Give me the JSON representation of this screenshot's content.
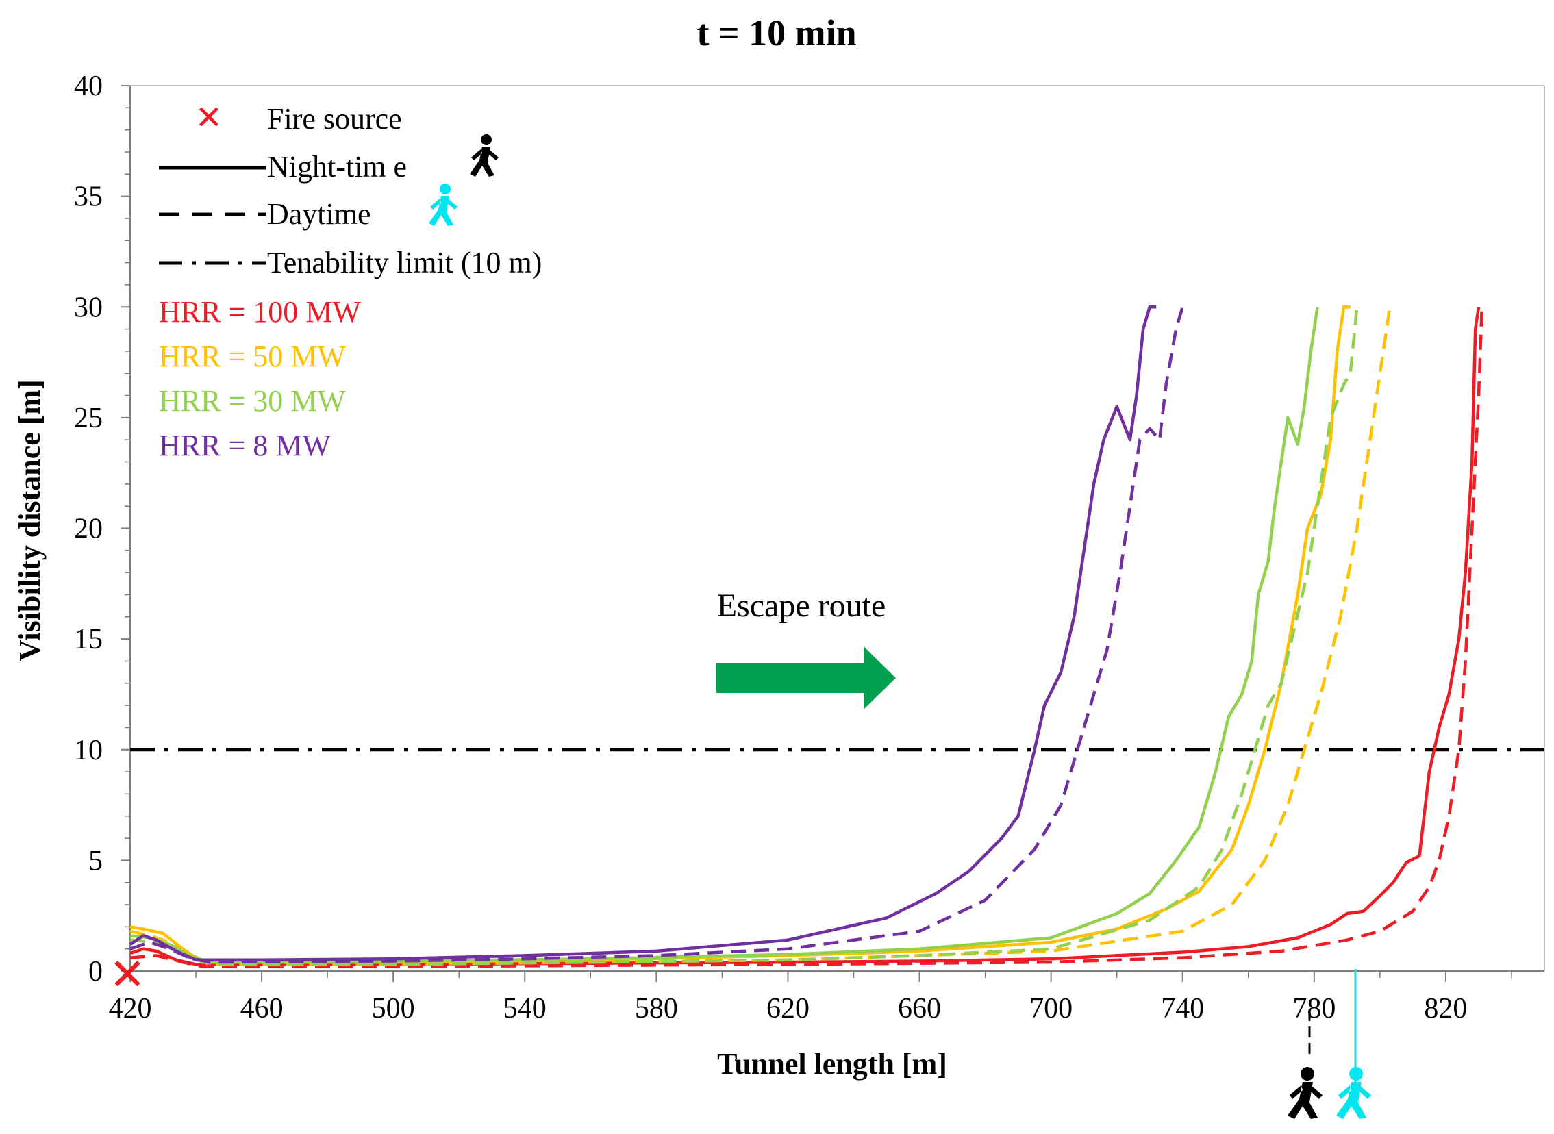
{
  "chart_data": {
    "type": "line",
    "title": "t = 10 min",
    "xlabel": "Tunnel length [m]",
    "ylabel": "Visibility distance [m]",
    "xlim": [
      420,
      850
    ],
    "ylim": [
      0,
      40
    ],
    "xticks": [
      420,
      460,
      500,
      540,
      580,
      620,
      660,
      700,
      740,
      780,
      820
    ],
    "yticks": [
      0,
      5,
      10,
      15,
      20,
      25,
      30,
      35,
      40
    ],
    "legend": {
      "fire_source": "Fire source",
      "night": "Night-tim e",
      "day": "Daytime",
      "limit": "Tenability limit (10 m)"
    },
    "hrr_labels": [
      {
        "text": "HRR  = 100  MW",
        "color": "#ee1c25"
      },
      {
        "text": "HRR  = 50  MW",
        "color": "#ffc000"
      },
      {
        "text": "HRR  = 30  MW",
        "color": "#92d050"
      },
      {
        "text": "HRR  = 8  MW",
        "color": "#7030a0"
      }
    ],
    "annotation": "Escape route",
    "tenability_limit": 10,
    "fire_source_x": 420,
    "series": [
      {
        "name": "HRR = 100 MW Night-time",
        "color": "#ee1c25",
        "style": "solid",
        "points": [
          [
            420,
            0.8
          ],
          [
            424,
            1.0
          ],
          [
            428,
            0.9
          ],
          [
            434,
            0.5
          ],
          [
            440,
            0.3
          ],
          [
            500,
            0.3
          ],
          [
            560,
            0.35
          ],
          [
            620,
            0.4
          ],
          [
            660,
            0.45
          ],
          [
            700,
            0.55
          ],
          [
            740,
            0.85
          ],
          [
            760,
            1.1
          ],
          [
            775,
            1.5
          ],
          [
            785,
            2.1
          ],
          [
            790,
            2.6
          ],
          [
            795,
            2.7
          ],
          [
            800,
            3.4
          ],
          [
            804,
            4.0
          ],
          [
            808,
            4.9
          ],
          [
            812,
            5.2
          ],
          [
            815,
            9.0
          ],
          [
            818,
            11.0
          ],
          [
            821,
            12.5
          ],
          [
            824,
            15.0
          ],
          [
            826,
            18.0
          ],
          [
            828,
            23.0
          ],
          [
            829,
            29.0
          ],
          [
            830,
            30.0
          ]
        ]
      },
      {
        "name": "HRR = 100 MW Daytime",
        "color": "#ee1c25",
        "style": "dashed",
        "points": [
          [
            420,
            0.6
          ],
          [
            428,
            0.7
          ],
          [
            436,
            0.4
          ],
          [
            442,
            0.2
          ],
          [
            500,
            0.2
          ],
          [
            560,
            0.25
          ],
          [
            620,
            0.3
          ],
          [
            660,
            0.35
          ],
          [
            700,
            0.4
          ],
          [
            740,
            0.6
          ],
          [
            770,
            0.9
          ],
          [
            790,
            1.4
          ],
          [
            800,
            1.8
          ],
          [
            810,
            2.7
          ],
          [
            815,
            3.8
          ],
          [
            818,
            5.0
          ],
          [
            821,
            7.0
          ],
          [
            824,
            10.0
          ],
          [
            826,
            14.0
          ],
          [
            828,
            20.0
          ],
          [
            830,
            26.0
          ],
          [
            831,
            30.0
          ]
        ]
      },
      {
        "name": "HRR = 50 MW Night-time",
        "color": "#ffc000",
        "style": "solid",
        "points": [
          [
            420,
            2.0
          ],
          [
            424,
            1.9
          ],
          [
            430,
            1.7
          ],
          [
            436,
            1.0
          ],
          [
            442,
            0.4
          ],
          [
            500,
            0.4
          ],
          [
            560,
            0.5
          ],
          [
            620,
            0.7
          ],
          [
            660,
            0.9
          ],
          [
            700,
            1.3
          ],
          [
            720,
            1.9
          ],
          [
            735,
            2.8
          ],
          [
            745,
            3.6
          ],
          [
            755,
            5.5
          ],
          [
            760,
            7.5
          ],
          [
            765,
            10.0
          ],
          [
            770,
            13.0
          ],
          [
            775,
            17.0
          ],
          [
            778,
            20.0
          ],
          [
            782,
            21.5
          ],
          [
            785,
            24.0
          ],
          [
            787,
            28.0
          ],
          [
            789,
            30.0
          ],
          [
            791,
            30.0
          ]
        ]
      },
      {
        "name": "HRR = 50 MW Daytime",
        "color": "#ffc000",
        "style": "dashed",
        "points": [
          [
            420,
            1.8
          ],
          [
            426,
            1.6
          ],
          [
            432,
            1.3
          ],
          [
            438,
            0.8
          ],
          [
            444,
            0.3
          ],
          [
            500,
            0.3
          ],
          [
            560,
            0.4
          ],
          [
            620,
            0.5
          ],
          [
            660,
            0.7
          ],
          [
            700,
            0.9
          ],
          [
            740,
            1.8
          ],
          [
            755,
            3.0
          ],
          [
            765,
            5.0
          ],
          [
            772,
            7.5
          ],
          [
            777,
            10.0
          ],
          [
            782,
            12.5
          ],
          [
            788,
            16.0
          ],
          [
            793,
            20.0
          ],
          [
            797,
            24.0
          ],
          [
            801,
            28.0
          ],
          [
            803,
            30.0
          ]
        ]
      },
      {
        "name": "HRR = 30 MW Night-time",
        "color": "#92d050",
        "style": "solid",
        "points": [
          [
            420,
            1.6
          ],
          [
            426,
            1.5
          ],
          [
            432,
            1.2
          ],
          [
            438,
            0.7
          ],
          [
            444,
            0.4
          ],
          [
            500,
            0.45
          ],
          [
            560,
            0.55
          ],
          [
            620,
            0.75
          ],
          [
            660,
            1.0
          ],
          [
            700,
            1.5
          ],
          [
            720,
            2.6
          ],
          [
            730,
            3.5
          ],
          [
            738,
            5.0
          ],
          [
            745,
            6.5
          ],
          [
            750,
            9.0
          ],
          [
            754,
            11.5
          ],
          [
            758,
            12.5
          ],
          [
            761,
            14.0
          ],
          [
            763,
            17.0
          ],
          [
            766,
            18.5
          ],
          [
            768,
            21.0
          ],
          [
            772,
            25.0
          ],
          [
            775,
            23.8
          ],
          [
            777,
            25.5
          ],
          [
            779,
            28.0
          ],
          [
            781,
            30.0
          ]
        ]
      },
      {
        "name": "HRR = 30 MW Daytime",
        "color": "#92d050",
        "style": "dashed",
        "points": [
          [
            420,
            1.4
          ],
          [
            428,
            1.3
          ],
          [
            434,
            1.0
          ],
          [
            440,
            0.5
          ],
          [
            446,
            0.3
          ],
          [
            500,
            0.3
          ],
          [
            560,
            0.4
          ],
          [
            620,
            0.5
          ],
          [
            660,
            0.7
          ],
          [
            700,
            1.0
          ],
          [
            730,
            2.3
          ],
          [
            745,
            3.8
          ],
          [
            752,
            5.5
          ],
          [
            758,
            8.0
          ],
          [
            762,
            10.0
          ],
          [
            766,
            12.0
          ],
          [
            770,
            13.0
          ],
          [
            774,
            15.5
          ],
          [
            778,
            18.0
          ],
          [
            782,
            22.0
          ],
          [
            785,
            25.0
          ],
          [
            789,
            26.5
          ],
          [
            791,
            27.0
          ],
          [
            793,
            30.0
          ]
        ]
      },
      {
        "name": "HRR = 8 MW Night-time",
        "color": "#7030a0",
        "style": "solid",
        "points": [
          [
            420,
            1.2
          ],
          [
            424,
            1.6
          ],
          [
            428,
            1.4
          ],
          [
            434,
            0.9
          ],
          [
            440,
            0.5
          ],
          [
            460,
            0.5
          ],
          [
            500,
            0.55
          ],
          [
            540,
            0.7
          ],
          [
            580,
            0.9
          ],
          [
            620,
            1.4
          ],
          [
            650,
            2.4
          ],
          [
            665,
            3.5
          ],
          [
            675,
            4.5
          ],
          [
            685,
            6.0
          ],
          [
            690,
            7.0
          ],
          [
            695,
            10.0
          ],
          [
            698,
            12.0
          ],
          [
            703,
            13.5
          ],
          [
            707,
            16.0
          ],
          [
            710,
            19.0
          ],
          [
            713,
            22.0
          ],
          [
            716,
            24.0
          ],
          [
            720,
            25.5
          ],
          [
            724,
            24.0
          ],
          [
            726,
            26.0
          ],
          [
            728,
            29.0
          ],
          [
            730,
            30.0
          ],
          [
            732,
            30.0
          ]
        ]
      },
      {
        "name": "HRR = 8 MW Daytime",
        "color": "#7030a0",
        "style": "dashed",
        "points": [
          [
            420,
            1.0
          ],
          [
            426,
            1.3
          ],
          [
            432,
            1.0
          ],
          [
            438,
            0.6
          ],
          [
            444,
            0.4
          ],
          [
            500,
            0.45
          ],
          [
            540,
            0.55
          ],
          [
            580,
            0.7
          ],
          [
            620,
            1.0
          ],
          [
            660,
            1.8
          ],
          [
            680,
            3.2
          ],
          [
            695,
            5.5
          ],
          [
            703,
            7.5
          ],
          [
            708,
            10.0
          ],
          [
            712,
            12.0
          ],
          [
            717,
            14.5
          ],
          [
            721,
            18.0
          ],
          [
            724,
            21.0
          ],
          [
            727,
            24.0
          ],
          [
            730,
            24.5
          ],
          [
            733,
            24.0
          ],
          [
            735,
            26.5
          ],
          [
            738,
            29.0
          ],
          [
            740,
            30.0
          ]
        ]
      }
    ]
  }
}
